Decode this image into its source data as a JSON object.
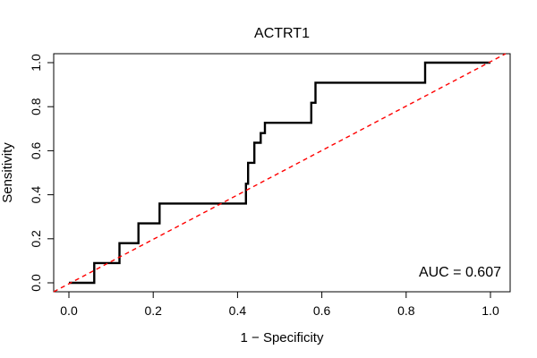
{
  "chart_data": {
    "type": "line",
    "title": "ACTRT1",
    "xlabel": "1 − Specificity",
    "ylabel": "Sensitivity",
    "xlim": [
      0,
      1
    ],
    "ylim": [
      0,
      1
    ],
    "x_ticks": [
      "0.0",
      "0.2",
      "0.4",
      "0.6",
      "0.8",
      "1.0"
    ],
    "y_ticks": [
      "0.0",
      "0.2",
      "0.4",
      "0.6",
      "0.8",
      "1.0"
    ],
    "grid": false,
    "annotation": "AUC = 0.607",
    "colors": {
      "roc": "#000000",
      "reference": "#ff0000"
    },
    "series": [
      {
        "type": "step",
        "x": [
          0.0,
          0.06,
          0.06,
          0.12,
          0.12,
          0.165,
          0.165,
          0.215,
          0.215,
          0.42,
          0.42,
          0.425,
          0.425,
          0.44,
          0.44,
          0.455,
          0.455,
          0.465,
          0.465,
          0.575,
          0.575,
          0.585,
          0.585,
          0.845,
          0.845,
          1.0
        ],
        "y": [
          0.0,
          0.0,
          0.09,
          0.09,
          0.18,
          0.18,
          0.27,
          0.27,
          0.36,
          0.36,
          0.45,
          0.45,
          0.545,
          0.545,
          0.636,
          0.636,
          0.68,
          0.68,
          0.727,
          0.727,
          0.818,
          0.818,
          0.909,
          0.909,
          1.0,
          1.0
        ]
      },
      {
        "type": "reference",
        "x": [
          0,
          1
        ],
        "y": [
          0,
          1
        ]
      }
    ]
  }
}
